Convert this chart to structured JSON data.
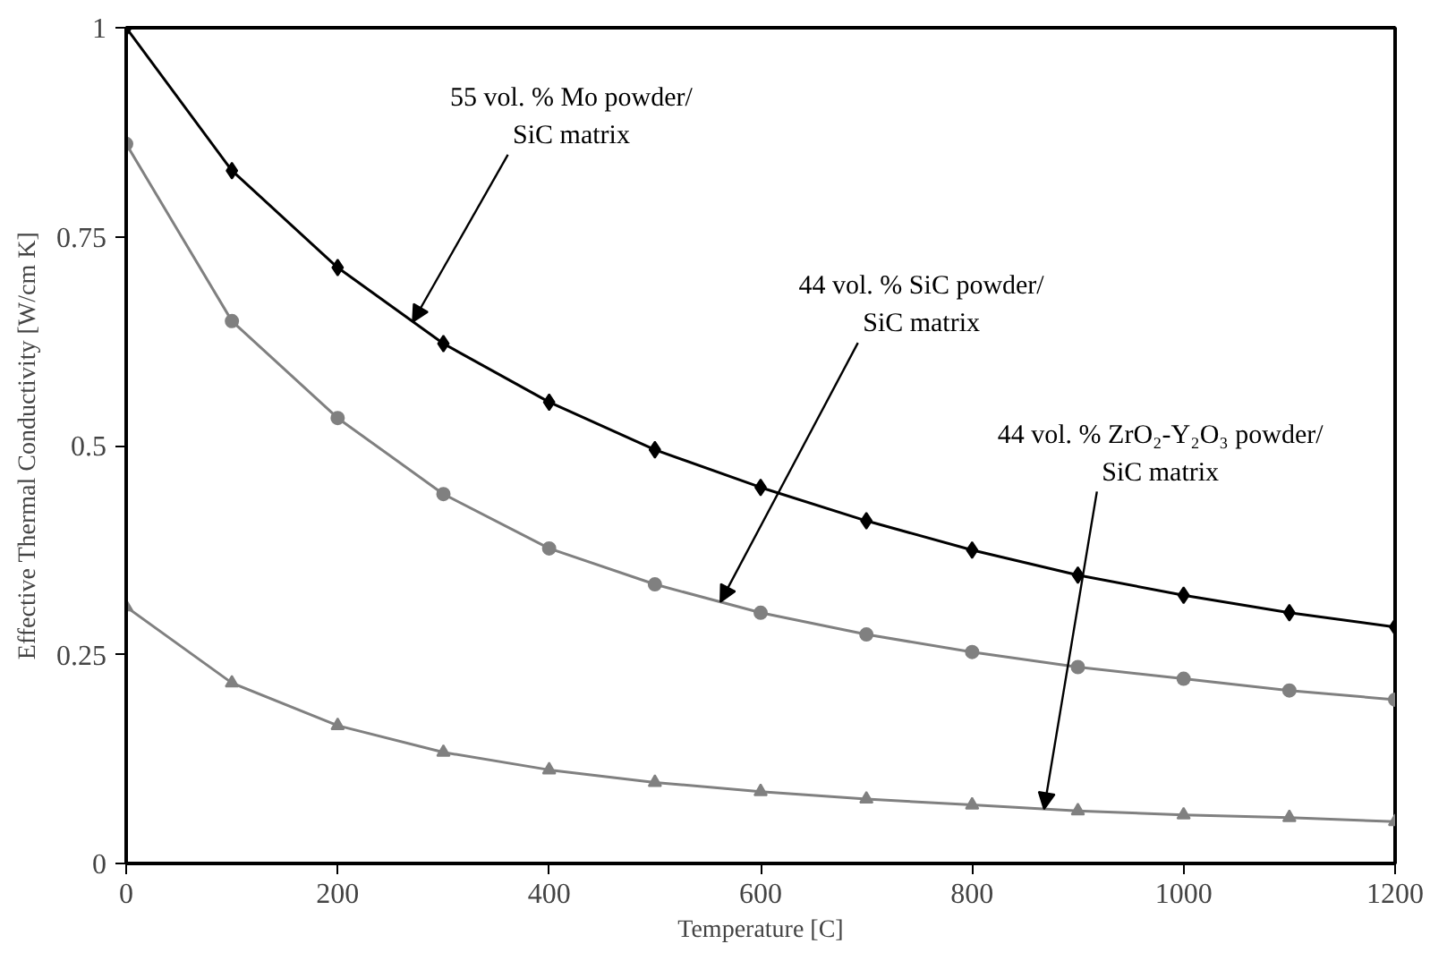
{
  "chart_data": {
    "type": "line",
    "xlabel": "Temperature [C]",
    "ylabel": "Effective Thermal Conductivity [W/cm K]",
    "x": [
      0,
      100,
      200,
      300,
      400,
      500,
      600,
      700,
      800,
      900,
      1000,
      1100,
      1200
    ],
    "series": [
      {
        "color": "#000000",
        "marker": "diamond",
        "values": [
          1.0,
          0.829,
          0.713,
          0.622,
          0.552,
          0.495,
          0.45,
          0.41,
          0.375,
          0.345,
          0.321,
          0.3,
          0.283
        ]
      },
      {
        "color": "#808080",
        "marker": "circle",
        "values": [
          0.861,
          0.649,
          0.533,
          0.442,
          0.377,
          0.334,
          0.3,
          0.274,
          0.253,
          0.235,
          0.221,
          0.207,
          0.196
        ]
      },
      {
        "color": "#808080",
        "marker": "triangle",
        "values": [
          0.307,
          0.216,
          0.165,
          0.133,
          0.112,
          0.097,
          0.086,
          0.077,
          0.07,
          0.063,
          0.058,
          0.055,
          0.05
        ]
      }
    ],
    "xlim": [
      0,
      1200
    ],
    "xticks": [
      0,
      200,
      400,
      600,
      800,
      1000,
      1200
    ],
    "ylim": [
      0,
      1
    ],
    "yticks": [
      0,
      0.25,
      0.5,
      0.75,
      1
    ],
    "grid": false,
    "line_style": "solid",
    "annotations": [
      {
        "text": "55 vol. % Mo powder/\nSiC matrix",
        "x": 271,
        "y": 0.648
      },
      {
        "text": "44 vol. % SiC powder/\nSiC matrix",
        "x": 562,
        "y": 0.313
      },
      {
        "text": "44 vol. % ZrO₂-Y₂O₃ powder/\nSiC matrix",
        "x": 868,
        "y": 0.065
      }
    ]
  }
}
